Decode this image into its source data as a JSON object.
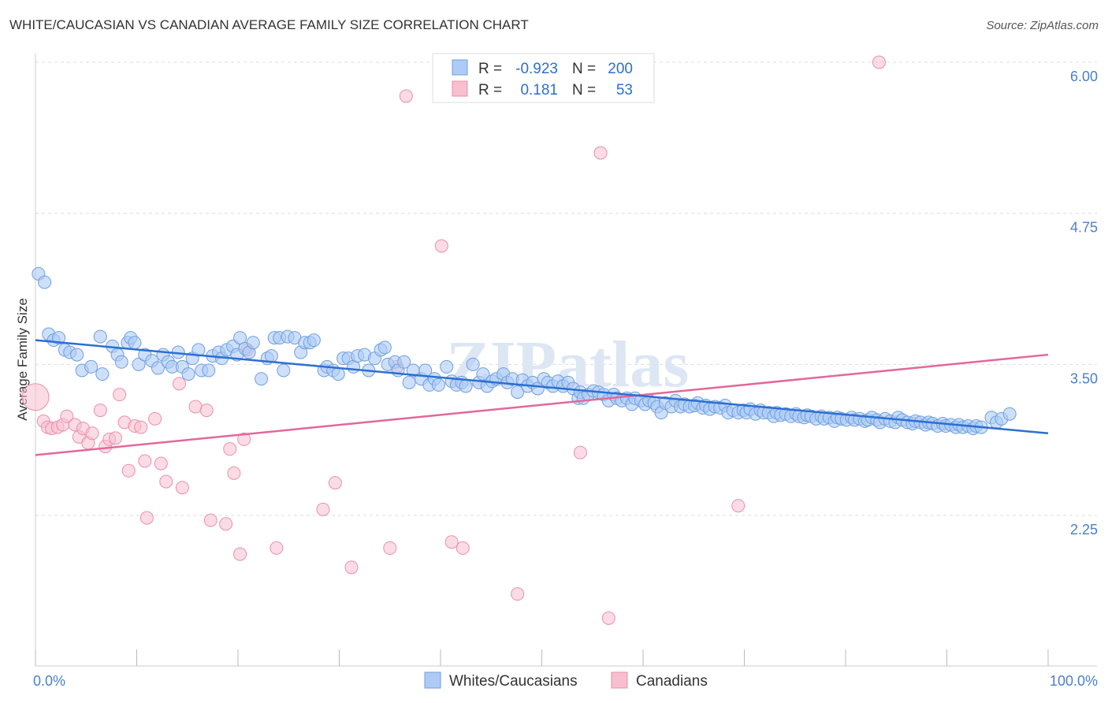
{
  "title": "WHITE/CAUCASIAN VS CANADIAN AVERAGE FAMILY SIZE CORRELATION CHART",
  "source": "Source: ZipAtlas.com",
  "watermark": "ZIPatlas",
  "colors": {
    "blue_fill": "#aecbf5",
    "blue_stroke": "#6f9fe0",
    "blue_line": "#2c6fd1",
    "pink_fill": "#f7bfd0",
    "pink_stroke": "#ec8eab",
    "pink_line": "#e2689a",
    "axis_text": "#4a7fd0"
  },
  "legend": {
    "rows": [
      {
        "r_label": "R =",
        "r_value": "-0.923",
        "n_label": "N =",
        "n_value": "200"
      },
      {
        "r_label": "R =",
        "r_value": "0.181",
        "n_label": "N =",
        "n_value": "53"
      }
    ]
  },
  "bottom_legend": [
    "Whites/Caucasians",
    "Canadians"
  ],
  "chart_data": {
    "type": "scatter",
    "xlabel": "",
    "ylabel": "Average Family Size",
    "xlim": [
      0,
      100
    ],
    "ylim": [
      1.0,
      6.35
    ],
    "x_tick_labels": [
      "0.0%",
      "100.0%"
    ],
    "y_ticks": [
      2.25,
      3.5,
      4.75,
      6.0
    ],
    "y_tick_labels": [
      "2.25",
      "3.50",
      "4.75",
      "6.00"
    ],
    "grid": "horizontal dashed",
    "series": [
      {
        "name": "Whites/Caucasians",
        "trend": {
          "x0": 0,
          "y0": 3.7,
          "x1": 100,
          "y1": 2.93
        },
        "points": [
          [
            0.3,
            4.25
          ],
          [
            0.9,
            4.18
          ],
          [
            1.3,
            3.75
          ],
          [
            1.8,
            3.7
          ],
          [
            2.3,
            3.72
          ],
          [
            2.9,
            3.62
          ],
          [
            3.4,
            3.6
          ],
          [
            4.1,
            3.58
          ],
          [
            4.6,
            3.45
          ],
          [
            5.5,
            3.48
          ],
          [
            6.4,
            3.73
          ],
          [
            6.6,
            3.42
          ],
          [
            7.6,
            3.65
          ],
          [
            8.1,
            3.58
          ],
          [
            8.5,
            3.52
          ],
          [
            9.1,
            3.68
          ],
          [
            9.4,
            3.72
          ],
          [
            9.8,
            3.68
          ],
          [
            10.2,
            3.5
          ],
          [
            10.8,
            3.58
          ],
          [
            11.5,
            3.53
          ],
          [
            12.1,
            3.47
          ],
          [
            12.6,
            3.58
          ],
          [
            13.1,
            3.52
          ],
          [
            13.5,
            3.48
          ],
          [
            14.1,
            3.6
          ],
          [
            14.5,
            3.48
          ],
          [
            15.1,
            3.42
          ],
          [
            15.5,
            3.55
          ],
          [
            16.1,
            3.62
          ],
          [
            16.4,
            3.45
          ],
          [
            17.1,
            3.45
          ],
          [
            17.5,
            3.57
          ],
          [
            18.1,
            3.6
          ],
          [
            18.4,
            3.55
          ],
          [
            18.9,
            3.62
          ],
          [
            19.5,
            3.65
          ],
          [
            19.9,
            3.58
          ],
          [
            20.2,
            3.72
          ],
          [
            20.7,
            3.63
          ],
          [
            21.1,
            3.6
          ],
          [
            21.5,
            3.68
          ],
          [
            22.3,
            3.38
          ],
          [
            22.9,
            3.55
          ],
          [
            23.3,
            3.57
          ],
          [
            23.6,
            3.72
          ],
          [
            24.1,
            3.72
          ],
          [
            24.5,
            3.45
          ],
          [
            24.9,
            3.73
          ],
          [
            25.6,
            3.72
          ],
          [
            26.2,
            3.6
          ],
          [
            26.6,
            3.68
          ],
          [
            27.1,
            3.68
          ],
          [
            27.5,
            3.7
          ],
          [
            28.5,
            3.45
          ],
          [
            28.8,
            3.48
          ],
          [
            29.4,
            3.45
          ],
          [
            29.9,
            3.42
          ],
          [
            30.4,
            3.55
          ],
          [
            30.9,
            3.55
          ],
          [
            31.4,
            3.48
          ],
          [
            31.8,
            3.57
          ],
          [
            32.5,
            3.58
          ],
          [
            32.9,
            3.45
          ],
          [
            33.5,
            3.55
          ],
          [
            34.1,
            3.62
          ],
          [
            34.5,
            3.64
          ],
          [
            34.8,
            3.5
          ],
          [
            35.5,
            3.52
          ],
          [
            35.8,
            3.45
          ],
          [
            36.4,
            3.52
          ],
          [
            36.9,
            3.35
          ],
          [
            37.3,
            3.45
          ],
          [
            38.1,
            3.38
          ],
          [
            38.5,
            3.45
          ],
          [
            38.9,
            3.33
          ],
          [
            39.4,
            3.38
          ],
          [
            39.8,
            3.33
          ],
          [
            40.6,
            3.48
          ],
          [
            41.1,
            3.36
          ],
          [
            41.6,
            3.33
          ],
          [
            42.1,
            3.35
          ],
          [
            42.5,
            3.32
          ],
          [
            43.2,
            3.5
          ],
          [
            43.8,
            3.35
          ],
          [
            44.2,
            3.42
          ],
          [
            44.6,
            3.32
          ],
          [
            45.1,
            3.36
          ],
          [
            45.5,
            3.38
          ],
          [
            46.2,
            3.42
          ],
          [
            46.6,
            3.35
          ],
          [
            47.1,
            3.38
          ],
          [
            47.6,
            3.27
          ],
          [
            48.1,
            3.37
          ],
          [
            48.6,
            3.32
          ],
          [
            49.1,
            3.35
          ],
          [
            49.6,
            3.3
          ],
          [
            50.2,
            3.38
          ],
          [
            50.6,
            3.35
          ],
          [
            51.1,
            3.32
          ],
          [
            51.6,
            3.36
          ],
          [
            52.1,
            3.32
          ],
          [
            52.6,
            3.35
          ],
          [
            53.1,
            3.3
          ],
          [
            53.6,
            3.22
          ],
          [
            53.8,
            3.27
          ],
          [
            54.1,
            3.22
          ],
          [
            54.6,
            3.25
          ],
          [
            55.1,
            3.28
          ],
          [
            55.6,
            3.27
          ],
          [
            56.1,
            3.25
          ],
          [
            56.6,
            3.2
          ],
          [
            57.1,
            3.25
          ],
          [
            57.4,
            3.22
          ],
          [
            57.9,
            3.2
          ],
          [
            58.4,
            3.22
          ],
          [
            58.9,
            3.17
          ],
          [
            59.2,
            3.22
          ],
          [
            59.8,
            3.2
          ],
          [
            60.2,
            3.17
          ],
          [
            60.6,
            3.2
          ],
          [
            61.1,
            3.18
          ],
          [
            61.4,
            3.15
          ],
          [
            61.8,
            3.1
          ],
          [
            62.2,
            3.18
          ],
          [
            62.8,
            3.15
          ],
          [
            63.2,
            3.2
          ],
          [
            63.7,
            3.15
          ],
          [
            64.1,
            3.17
          ],
          [
            64.6,
            3.15
          ],
          [
            65.1,
            3.16
          ],
          [
            65.4,
            3.18
          ],
          [
            65.9,
            3.14
          ],
          [
            66.2,
            3.16
          ],
          [
            66.6,
            3.13
          ],
          [
            67.1,
            3.15
          ],
          [
            67.6,
            3.14
          ],
          [
            68.1,
            3.16
          ],
          [
            68.4,
            3.1
          ],
          [
            68.9,
            3.12
          ],
          [
            69.4,
            3.1
          ],
          [
            69.9,
            3.12
          ],
          [
            70.2,
            3.1
          ],
          [
            70.6,
            3.13
          ],
          [
            71.1,
            3.09
          ],
          [
            71.6,
            3.12
          ],
          [
            71.9,
            3.1
          ],
          [
            72.4,
            3.1
          ],
          [
            72.9,
            3.07
          ],
          [
            73.2,
            3.1
          ],
          [
            73.6,
            3.08
          ],
          [
            74.1,
            3.09
          ],
          [
            74.6,
            3.07
          ],
          [
            75.1,
            3.09
          ],
          [
            75.4,
            3.07
          ],
          [
            75.9,
            3.06
          ],
          [
            76.2,
            3.08
          ],
          [
            76.6,
            3.07
          ],
          [
            77.1,
            3.05
          ],
          [
            77.6,
            3.07
          ],
          [
            77.9,
            3.05
          ],
          [
            78.4,
            3.06
          ],
          [
            78.9,
            3.03
          ],
          [
            79.2,
            3.06
          ],
          [
            79.6,
            3.05
          ],
          [
            80.1,
            3.04
          ],
          [
            80.6,
            3.06
          ],
          [
            80.9,
            3.04
          ],
          [
            81.4,
            3.05
          ],
          [
            81.9,
            3.03
          ],
          [
            82.2,
            3.04
          ],
          [
            82.6,
            3.06
          ],
          [
            83.1,
            3.04
          ],
          [
            83.4,
            3.02
          ],
          [
            83.9,
            3.05
          ],
          [
            84.4,
            3.03
          ],
          [
            84.9,
            3.02
          ],
          [
            85.2,
            3.06
          ],
          [
            85.6,
            3.04
          ],
          [
            86.1,
            3.02
          ],
          [
            86.6,
            3.01
          ],
          [
            86.9,
            3.03
          ],
          [
            87.4,
            3.02
          ],
          [
            87.9,
            3.0
          ],
          [
            88.2,
            3.02
          ],
          [
            88.6,
            3.01
          ],
          [
            89.1,
            2.99
          ],
          [
            89.6,
            3.01
          ],
          [
            89.9,
            2.99
          ],
          [
            90.4,
            3.0
          ],
          [
            90.9,
            2.98
          ],
          [
            91.2,
            3.0
          ],
          [
            91.6,
            2.98
          ],
          [
            92.1,
            2.99
          ],
          [
            92.6,
            2.97
          ],
          [
            92.9,
            2.99
          ],
          [
            93.4,
            2.98
          ],
          [
            94.4,
            3.06
          ],
          [
            94.9,
            3.02
          ],
          [
            95.4,
            3.05
          ],
          [
            96.2,
            3.09
          ]
        ]
      },
      {
        "name": "Canadians",
        "trend": {
          "x0": 0,
          "y0": 2.75,
          "x1": 100,
          "y1": 3.58
        },
        "points": [
          [
            0,
            3.23
          ],
          [
            0.8,
            3.03
          ],
          [
            1.2,
            2.98
          ],
          [
            1.6,
            2.97
          ],
          [
            2.2,
            2.98
          ],
          [
            2.7,
            3.0
          ],
          [
            3.1,
            3.07
          ],
          [
            3.9,
            3.0
          ],
          [
            4.3,
            2.9
          ],
          [
            4.7,
            2.97
          ],
          [
            5.2,
            2.85
          ],
          [
            5.6,
            2.93
          ],
          [
            6.4,
            3.12
          ],
          [
            6.9,
            2.82
          ],
          [
            7.3,
            2.88
          ],
          [
            7.9,
            2.89
          ],
          [
            8.3,
            3.25
          ],
          [
            8.8,
            3.02
          ],
          [
            9.2,
            2.62
          ],
          [
            9.8,
            2.99
          ],
          [
            10.4,
            2.98
          ],
          [
            10.8,
            2.7
          ],
          [
            11.0,
            2.23
          ],
          [
            11.8,
            3.05
          ],
          [
            12.4,
            2.68
          ],
          [
            12.9,
            2.53
          ],
          [
            14.2,
            3.34
          ],
          [
            14.5,
            2.48
          ],
          [
            15.8,
            3.15
          ],
          [
            16.9,
            3.12
          ],
          [
            17.3,
            2.21
          ],
          [
            18.8,
            2.18
          ],
          [
            19.2,
            2.8
          ],
          [
            19.6,
            2.6
          ],
          [
            20.2,
            1.93
          ],
          [
            20.6,
            2.88
          ],
          [
            20.9,
            3.62
          ],
          [
            23.8,
            1.98
          ],
          [
            28.4,
            2.3
          ],
          [
            29.6,
            2.52
          ],
          [
            31.2,
            1.82
          ],
          [
            35.0,
            1.98
          ],
          [
            35.7,
            3.48
          ],
          [
            36.6,
            5.72
          ],
          [
            40.1,
            4.48
          ],
          [
            41.1,
            2.03
          ],
          [
            42.2,
            1.98
          ],
          [
            47.6,
            1.6
          ],
          [
            53.8,
            2.77
          ],
          [
            55.8,
            5.25
          ],
          [
            56.6,
            1.4
          ],
          [
            69.4,
            2.33
          ],
          [
            83.3,
            6.0
          ]
        ]
      }
    ]
  }
}
